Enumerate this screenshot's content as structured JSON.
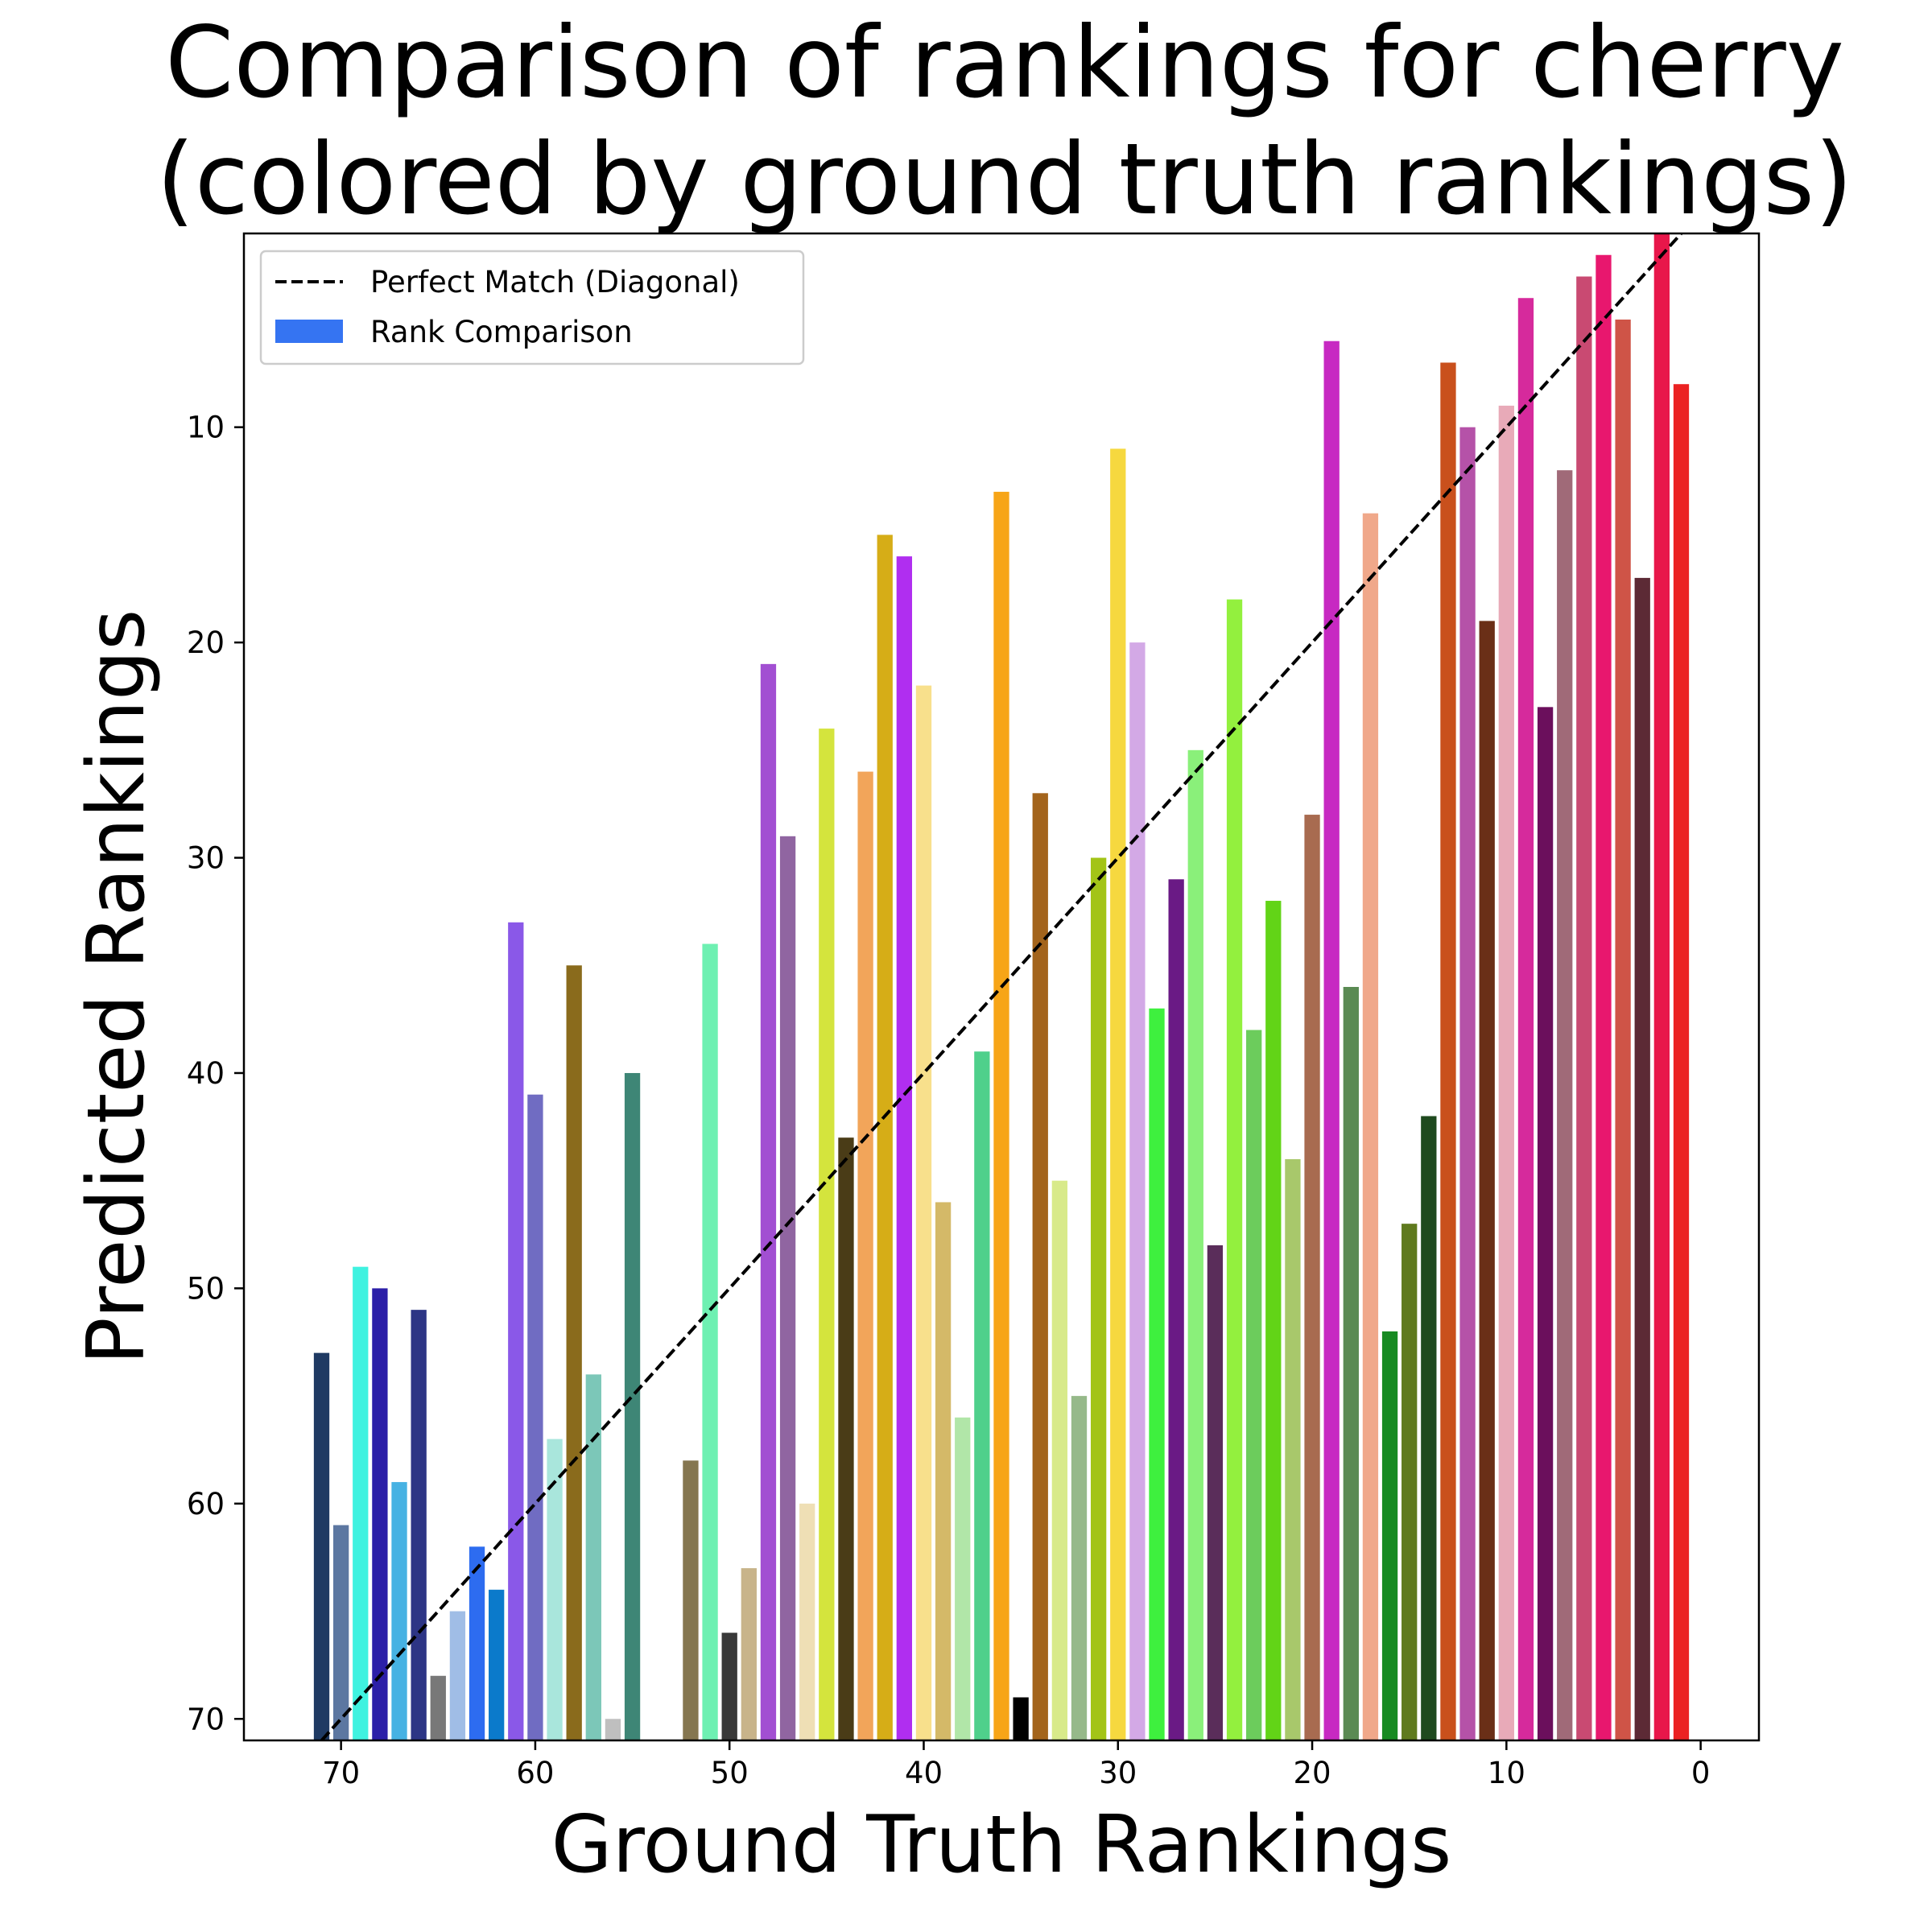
{
  "chart_data": {
    "type": "bar",
    "title_lines": [
      "Comparison of rankings for cherry",
      "(colored by ground truth rankings)"
    ],
    "xlabel": "Ground Truth Rankings",
    "ylabel": "Predicted Rankings",
    "xlim": [
      75,
      -3
    ],
    "ylim": [
      71,
      1
    ],
    "x_inverted": true,
    "y_inverted": true,
    "x_ticks": [
      70,
      60,
      50,
      40,
      30,
      20,
      10,
      0
    ],
    "y_ticks": [
      10,
      20,
      30,
      40,
      50,
      60,
      70
    ],
    "grid": false,
    "legend": {
      "placement": "top-left",
      "entries": [
        {
          "label": "Perfect Match (Diagonal)",
          "style": "dashed-line",
          "color": "#000000"
        },
        {
          "label": "Rank Comparison",
          "style": "patch",
          "color": "#3574f2"
        }
      ]
    },
    "diagonal": {
      "from": [
        71,
        71
      ],
      "to": [
        1,
        1
      ],
      "label": "Perfect Match (Diagonal)"
    },
    "bars": [
      {
        "x": 71,
        "y": 53,
        "color": "#1f3a63"
      },
      {
        "x": 70,
        "y": 61,
        "color": "#5c77a1"
      },
      {
        "x": 69,
        "y": 49,
        "color": "#3ff2e0"
      },
      {
        "x": 68,
        "y": 50,
        "color": "#2c1fa8"
      },
      {
        "x": 67,
        "y": 59,
        "color": "#46b2e3"
      },
      {
        "x": 66,
        "y": 51,
        "color": "#2d3585"
      },
      {
        "x": 65,
        "y": 68,
        "color": "#787878"
      },
      {
        "x": 64,
        "y": 65,
        "color": "#a0bde6"
      },
      {
        "x": 63,
        "y": 62,
        "color": "#2d6cf0"
      },
      {
        "x": 62,
        "y": 64,
        "color": "#0b7acb"
      },
      {
        "x": 61,
        "y": 33,
        "color": "#8a58e8"
      },
      {
        "x": 60,
        "y": 41,
        "color": "#706cc2"
      },
      {
        "x": 59,
        "y": 57,
        "color": "#a9e6dc"
      },
      {
        "x": 58,
        "y": 35,
        "color": "#8a6b1c"
      },
      {
        "x": 57,
        "y": 54,
        "color": "#7cc7b8"
      },
      {
        "x": 56,
        "y": 70,
        "color": "#bfbfbf"
      },
      {
        "x": 55,
        "y": 40,
        "color": "#3e8676"
      },
      {
        "x": 52,
        "y": 58,
        "color": "#857650"
      },
      {
        "x": 51,
        "y": 34,
        "color": "#6ef0b2"
      },
      {
        "x": 50,
        "y": 66,
        "color": "#393939"
      },
      {
        "x": 49,
        "y": 63,
        "color": "#c8b48a"
      },
      {
        "x": 48,
        "y": 21,
        "color": "#a24fd2"
      },
      {
        "x": 47,
        "y": 29,
        "color": "#9065a1"
      },
      {
        "x": 46,
        "y": 60,
        "color": "#efdfb5"
      },
      {
        "x": 45,
        "y": 24,
        "color": "#d4e43d"
      },
      {
        "x": 44,
        "y": 43,
        "color": "#4a3c17"
      },
      {
        "x": 43,
        "y": 26,
        "color": "#f2a55a"
      },
      {
        "x": 42,
        "y": 15,
        "color": "#d6ad17"
      },
      {
        "x": 41,
        "y": 16,
        "color": "#b02ef0"
      },
      {
        "x": 40,
        "y": 22,
        "color": "#f8e08c"
      },
      {
        "x": 39,
        "y": 46,
        "color": "#d4b968"
      },
      {
        "x": 38,
        "y": 56,
        "color": "#b1e6a8"
      },
      {
        "x": 37,
        "y": 39,
        "color": "#4fd08b"
      },
      {
        "x": 36,
        "y": 13,
        "color": "#f7a517"
      },
      {
        "x": 35,
        "y": 69,
        "color": "#000000"
      },
      {
        "x": 34,
        "y": 27,
        "color": "#a3641c"
      },
      {
        "x": 33,
        "y": 45,
        "color": "#d8ea8a"
      },
      {
        "x": 32,
        "y": 55,
        "color": "#96b98a"
      },
      {
        "x": 31,
        "y": 30,
        "color": "#a3c417"
      },
      {
        "x": 30,
        "y": 11,
        "color": "#f6d83f"
      },
      {
        "x": 29,
        "y": 20,
        "color": "#d3a9e6"
      },
      {
        "x": 28,
        "y": 37,
        "color": "#3ef03e"
      },
      {
        "x": 27,
        "y": 31,
        "color": "#6a1a85"
      },
      {
        "x": 26,
        "y": 25,
        "color": "#8af07a"
      },
      {
        "x": 25,
        "y": 48,
        "color": "#5a2d5a"
      },
      {
        "x": 24,
        "y": 18,
        "color": "#93f03e"
      },
      {
        "x": 23,
        "y": 38,
        "color": "#6ccc5c"
      },
      {
        "x": 22,
        "y": 32,
        "color": "#62d417"
      },
      {
        "x": 21,
        "y": 44,
        "color": "#a8c86b"
      },
      {
        "x": 20,
        "y": 28,
        "color": "#a86b50"
      },
      {
        "x": 19,
        "y": 6,
        "color": "#c729c2"
      },
      {
        "x": 18,
        "y": 36,
        "color": "#5a8a53"
      },
      {
        "x": 17,
        "y": 14,
        "color": "#f0a88a"
      },
      {
        "x": 16,
        "y": 52,
        "color": "#178a22"
      },
      {
        "x": 15,
        "y": 47,
        "color": "#5f7a1e"
      },
      {
        "x": 14,
        "y": 42,
        "color": "#1f4a1e"
      },
      {
        "x": 13,
        "y": 7,
        "color": "#c9501c"
      },
      {
        "x": 12,
        "y": 10,
        "color": "#b552a8"
      },
      {
        "x": 11,
        "y": 19,
        "color": "#6a2f17"
      },
      {
        "x": 10,
        "y": 9,
        "color": "#e8aab8"
      },
      {
        "x": 9,
        "y": 4,
        "color": "#d62a9c"
      },
      {
        "x": 8,
        "y": 23,
        "color": "#6b0f5c"
      },
      {
        "x": 7,
        "y": 12,
        "color": "#a06a78"
      },
      {
        "x": 6,
        "y": 3,
        "color": "#c94a72"
      },
      {
        "x": 5,
        "y": 2,
        "color": "#e8176e"
      },
      {
        "x": 4,
        "y": 5,
        "color": "#cf5447"
      },
      {
        "x": 3,
        "y": 17,
        "color": "#5c2a35"
      },
      {
        "x": 2,
        "y": 1,
        "color": "#e8174a"
      },
      {
        "x": 1,
        "y": 8,
        "color": "#eb2222"
      }
    ]
  }
}
